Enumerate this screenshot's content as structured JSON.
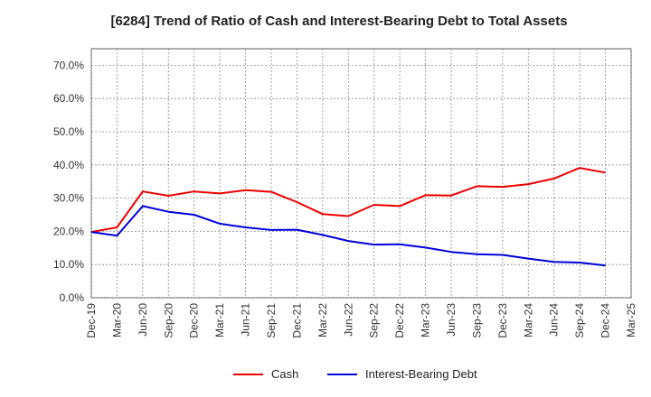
{
  "chart_data": {
    "type": "line",
    "title": "[6284]  Trend of Ratio of Cash and Interest-Bearing Debt to Total Assets",
    "xlabel": "",
    "ylabel": "",
    "ylim": [
      0,
      75
    ],
    "yticks": [
      "0.0%",
      "10.0%",
      "20.0%",
      "30.0%",
      "40.0%",
      "50.0%",
      "60.0%",
      "70.0%"
    ],
    "ytick_values": [
      0,
      10,
      20,
      30,
      40,
      50,
      60,
      70
    ],
    "x": [
      "Dec-19",
      "Mar-20",
      "Jun-20",
      "Sep-20",
      "Dec-20",
      "Mar-21",
      "Jun-21",
      "Sep-21",
      "Dec-21",
      "Mar-22",
      "Jun-22",
      "Sep-22",
      "Dec-22",
      "Mar-23",
      "Jun-23",
      "Sep-23",
      "Dec-23",
      "Mar-24",
      "Jun-24",
      "Sep-24",
      "Dec-24",
      "Mar-25"
    ],
    "grid": true,
    "legend_position": "bottom",
    "series": [
      {
        "name": "Cash",
        "color": "#ee0000",
        "values": [
          19.8,
          21.2,
          32.0,
          30.7,
          32.0,
          31.4,
          32.4,
          31.9,
          28.8,
          25.2,
          24.6,
          28.0,
          27.6,
          30.9,
          30.8,
          33.6,
          33.4,
          34.2,
          35.9,
          39.1,
          37.7,
          null
        ]
      },
      {
        "name": "Interest-Bearing Debt",
        "color": "#0000dd",
        "values": [
          19.8,
          18.7,
          27.6,
          25.9,
          25.0,
          22.3,
          21.2,
          20.4,
          20.5,
          18.9,
          17.1,
          16.0,
          16.1,
          15.1,
          13.8,
          13.1,
          12.9,
          11.8,
          10.8,
          10.6,
          9.7,
          null
        ]
      }
    ]
  }
}
